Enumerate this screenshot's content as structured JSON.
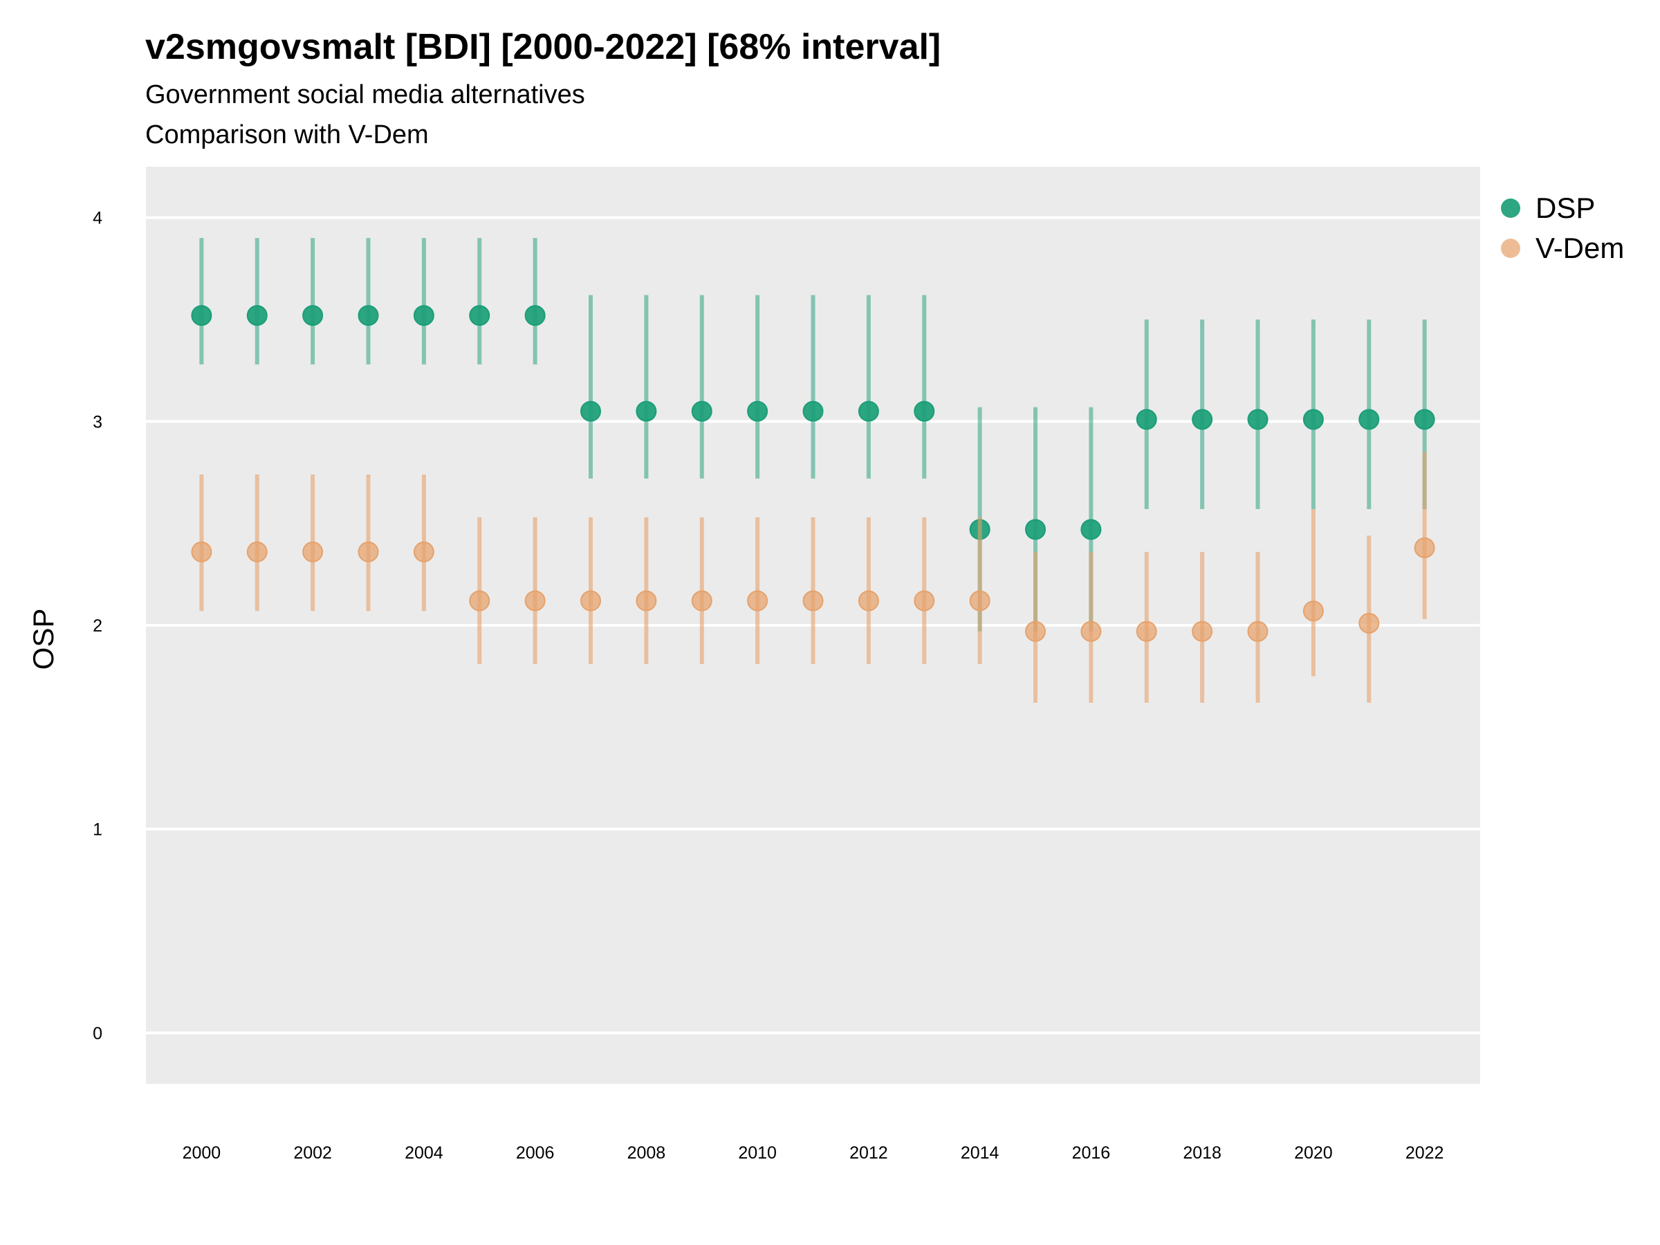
{
  "title": "v2smgovsmalt [BDI] [2000-2022] [68% interval]",
  "subtitle_lines": [
    "Government social media alternatives",
    "Comparison with V-Dem"
  ],
  "chart_data": {
    "type": "scatter",
    "title": "v2smgovsmalt [BDI] [2000-2022] [68% interval]",
    "subtitle": "Government social media alternatives\nComparison with V-Dem",
    "xlabel": "",
    "ylabel": "OSP",
    "xlim": [
      1999,
      2023
    ],
    "ylim": [
      -0.25,
      4.25
    ],
    "x_ticks": [
      2000,
      2002,
      2004,
      2006,
      2008,
      2010,
      2012,
      2014,
      2016,
      2018,
      2020,
      2022
    ],
    "y_ticks": [
      0,
      1,
      2,
      3,
      4
    ],
    "grid": true,
    "legend_position": "right",
    "x": [
      2000,
      2001,
      2002,
      2003,
      2004,
      2005,
      2006,
      2007,
      2008,
      2009,
      2010,
      2011,
      2012,
      2013,
      2014,
      2015,
      2016,
      2017,
      2018,
      2019,
      2020,
      2021,
      2022
    ],
    "series": [
      {
        "name": "DSP",
        "color": "#1b9e77",
        "values": [
          3.52,
          3.52,
          3.52,
          3.52,
          3.52,
          3.52,
          3.52,
          3.05,
          3.05,
          3.05,
          3.05,
          3.05,
          3.05,
          3.05,
          2.47,
          2.47,
          2.47,
          3.01,
          3.01,
          3.01,
          3.01,
          3.01,
          3.01
        ],
        "lower": [
          3.28,
          3.28,
          3.28,
          3.28,
          3.28,
          3.28,
          3.28,
          2.72,
          2.72,
          2.72,
          2.72,
          2.72,
          2.72,
          2.72,
          1.97,
          1.97,
          1.97,
          2.57,
          2.57,
          2.57,
          2.57,
          2.57,
          2.57
        ],
        "upper": [
          3.9,
          3.9,
          3.9,
          3.9,
          3.9,
          3.9,
          3.9,
          3.62,
          3.62,
          3.62,
          3.62,
          3.62,
          3.62,
          3.62,
          3.07,
          3.07,
          3.07,
          3.5,
          3.5,
          3.5,
          3.5,
          3.5,
          3.5
        ]
      },
      {
        "name": "V-Dem",
        "color": "#e6a26c",
        "values": [
          2.36,
          2.36,
          2.36,
          2.36,
          2.36,
          2.12,
          2.12,
          2.12,
          2.12,
          2.12,
          2.12,
          2.12,
          2.12,
          2.12,
          2.12,
          1.97,
          1.97,
          1.97,
          1.97,
          1.97,
          2.07,
          2.01,
          2.38
        ],
        "lower": [
          2.07,
          2.07,
          2.07,
          2.07,
          2.07,
          1.81,
          1.81,
          1.81,
          1.81,
          1.81,
          1.81,
          1.81,
          1.81,
          1.81,
          1.81,
          1.62,
          1.62,
          1.62,
          1.62,
          1.62,
          1.75,
          1.62,
          2.03
        ],
        "upper": [
          2.74,
          2.74,
          2.74,
          2.74,
          2.74,
          2.53,
          2.53,
          2.53,
          2.53,
          2.53,
          2.53,
          2.53,
          2.53,
          2.53,
          2.53,
          2.36,
          2.36,
          2.36,
          2.36,
          2.36,
          2.57,
          2.44,
          2.85
        ]
      }
    ]
  }
}
